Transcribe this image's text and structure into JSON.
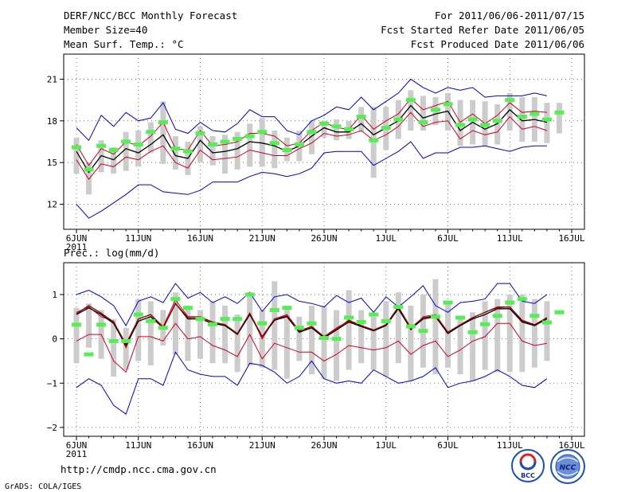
{
  "header": {
    "title": "DERF/NCC/BCC Monthly Forecast",
    "member_size": "Member Size=40",
    "var_label": "Mean Surf. Temp.: °C",
    "period": "For 2011/06/06-2011/07/15",
    "fcst_started": "Fcst Started Refer Date 2011/06/05",
    "fcst_produced": "Fcst Produced Date 2011/06/06"
  },
  "footer": {
    "url": "http://cmdp.ncc.cma.gov.cn",
    "credit": "GrADS: COLA/IGES",
    "logo_bcc": "BCC",
    "logo_ncc": "NCC"
  },
  "colors": {
    "ensemble_max_min": "#0000cc",
    "percentile_band": "#cc0022",
    "ensemble_mean": "#000000",
    "observed_marker": "#55ee55",
    "spread_box": "#cccccc",
    "grid": "#555555"
  },
  "chart_data": [
    {
      "type": "line",
      "title": "Mean Surf. Temp.: °C",
      "x_ticks": [
        "6JUN",
        "11JUN",
        "16JUN",
        "21JUN",
        "26JUN",
        "1JUL",
        "6JUL",
        "11JUL",
        "16JUL"
      ],
      "x_tick_days": [
        0,
        5,
        10,
        15,
        20,
        25,
        30,
        35,
        40
      ],
      "x_year": "2011",
      "y_ticks": [
        "12",
        "15",
        "18",
        "21"
      ],
      "y_tick_values": [
        12,
        15,
        18,
        21
      ],
      "ylim": [
        10.2,
        22.8
      ],
      "days": [
        0,
        1,
        2,
        3,
        4,
        5,
        6,
        7,
        8,
        9,
        10,
        11,
        12,
        13,
        14,
        15,
        16,
        17,
        18,
        19,
        20,
        21,
        22,
        23,
        24,
        25,
        26,
        27,
        28,
        29,
        30,
        31,
        32,
        33,
        34,
        35,
        36,
        37,
        38
      ],
      "series": [
        {
          "name": "ensemble max",
          "color": "#0000cc",
          "values": [
            17.5,
            16.6,
            18.4,
            17.6,
            18.6,
            18.0,
            18.2,
            19.3,
            17.4,
            17.1,
            17.9,
            17.3,
            17.2,
            17.8,
            18.8,
            18.3,
            18.3,
            17.3,
            17.0,
            18.0,
            18.4,
            19.0,
            18.8,
            19.7,
            18.8,
            19.4,
            20.0,
            21.0,
            20.4,
            20.0,
            20.4,
            20.2,
            20.4,
            19.7,
            19.8,
            19.8,
            19.8,
            20.0,
            19.8
          ]
        },
        {
          "name": "ensemble min",
          "color": "#0000cc",
          "values": [
            12.0,
            11.0,
            11.5,
            12.1,
            12.7,
            13.4,
            13.4,
            12.9,
            12.8,
            12.7,
            13.0,
            13.6,
            13.6,
            13.6,
            14.0,
            14.3,
            14.2,
            14.0,
            14.2,
            14.6,
            15.7,
            15.8,
            15.8,
            15.8,
            14.8,
            15.3,
            15.8,
            16.5,
            15.3,
            15.7,
            15.7,
            16.1,
            16.1,
            16.2,
            16.0,
            15.8,
            16.1,
            16.2,
            16.2
          ]
        },
        {
          "name": "upper percentile",
          "color": "#cc0022",
          "values": [
            16.3,
            14.8,
            16.0,
            15.6,
            16.5,
            16.2,
            16.9,
            17.9,
            16.0,
            15.9,
            17.3,
            16.2,
            16.3,
            16.5,
            17.1,
            17.1,
            16.9,
            16.2,
            16.4,
            17.3,
            17.9,
            17.5,
            17.4,
            18.4,
            17.4,
            18.0,
            18.5,
            19.6,
            18.8,
            19.1,
            19.4,
            17.9,
            18.5,
            17.8,
            18.4,
            19.3,
            18.6,
            18.7,
            18.6
          ]
        },
        {
          "name": "lower percentile",
          "color": "#cc0022",
          "values": [
            15.2,
            13.8,
            14.9,
            14.7,
            15.4,
            15.2,
            15.8,
            16.2,
            15.0,
            14.6,
            15.9,
            15.2,
            15.3,
            15.4,
            15.9,
            15.7,
            15.5,
            15.5,
            16.0,
            16.4,
            17.1,
            16.9,
            17.0,
            17.3,
            16.6,
            17.0,
            17.6,
            18.6,
            17.6,
            17.9,
            18.0,
            16.7,
            17.3,
            17.0,
            17.2,
            18.3,
            17.4,
            17.6,
            17.3
          ]
        },
        {
          "name": "ensemble mean",
          "color": "#000000",
          "values": [
            15.8,
            14.3,
            15.5,
            15.2,
            16.0,
            15.7,
            16.3,
            17.0,
            15.5,
            15.3,
            16.6,
            15.7,
            15.8,
            16.0,
            16.5,
            16.4,
            16.2,
            15.8,
            16.2,
            16.9,
            17.5,
            17.2,
            17.2,
            17.8,
            17.0,
            17.5,
            18.0,
            19.1,
            18.2,
            18.5,
            18.7,
            17.3,
            17.9,
            17.4,
            17.8,
            18.8,
            18.0,
            18.1,
            17.9
          ]
        }
      ],
      "observed": [
        16.1,
        14.5,
        16.2,
        15.9,
        16.5,
        16.3,
        17.2,
        17.9,
        16.0,
        15.8,
        17.1,
        16.3,
        16.5,
        16.7,
        16.9,
        17.2,
        16.4,
        15.9,
        16.3,
        17.2,
        17.8,
        17.6,
        17.4,
        18.3,
        16.6,
        17.5,
        18.1,
        19.5,
        17.9,
        18.8,
        19.2,
        17.7,
        18.1,
        17.7,
        18.0,
        19.5,
        18.3,
        18.5,
        18.1,
        18.6
      ],
      "spread_box": {
        "high": [
          16.8,
          15.0,
          16.6,
          16.1,
          17.2,
          17.3,
          17.9,
          19.4,
          16.9,
          16.5,
          17.6,
          16.9,
          17.0,
          17.2,
          17.8,
          18.2,
          17.3,
          16.8,
          17.3,
          18.0,
          18.0,
          18.1,
          18.0,
          19.0,
          19.0,
          19.0,
          19.5,
          20.2,
          19.8,
          19.7,
          20.0,
          19.5,
          19.5,
          19.4,
          19.2,
          20.0,
          19.7,
          19.7,
          19.3,
          19.3
        ],
        "low": [
          14.2,
          12.7,
          14.3,
          14.2,
          14.4,
          14.7,
          15.7,
          14.9,
          14.5,
          14.1,
          15.0,
          14.8,
          14.2,
          14.5,
          14.7,
          14.7,
          14.6,
          15.1,
          15.1,
          15.6,
          16.8,
          16.6,
          16.7,
          17.2,
          13.9,
          15.9,
          16.7,
          17.3,
          17.3,
          17.7,
          17.3,
          16.2,
          16.3,
          16.2,
          16.3,
          17.3,
          16.5,
          16.5,
          16.4,
          17.1
        ]
      }
    },
    {
      "type": "line",
      "title": "Prec.: log(mm/d)",
      "x_ticks": [
        "6JUN",
        "11JUN",
        "16JUN",
        "21JUN",
        "26JUN",
        "1JUL",
        "6JUL",
        "11JUL",
        "16JUL"
      ],
      "x_tick_days": [
        0,
        5,
        10,
        15,
        20,
        25,
        30,
        35,
        40
      ],
      "x_year": "2011",
      "y_ticks": [
        "−2",
        "−1",
        "0",
        "1"
      ],
      "y_tick_values": [
        -2,
        -1,
        0,
        1
      ],
      "ylim": [
        -2.2,
        1.72
      ],
      "days": [
        0,
        1,
        2,
        3,
        4,
        5,
        6,
        7,
        8,
        9,
        10,
        11,
        12,
        13,
        14,
        15,
        16,
        17,
        18,
        19,
        20,
        21,
        22,
        23,
        24,
        25,
        26,
        27,
        28,
        29,
        30,
        31,
        32,
        33,
        34,
        35,
        36,
        37,
        38
      ],
      "series": [
        {
          "name": "ensemble max",
          "color": "#0000cc",
          "values": [
            1.0,
            1.1,
            0.95,
            0.75,
            0.3,
            0.85,
            0.95,
            0.82,
            1.25,
            0.92,
            1.05,
            0.82,
            0.95,
            0.8,
            1.05,
            0.62,
            0.95,
            1.0,
            0.85,
            0.8,
            0.72,
            0.98,
            0.82,
            0.92,
            0.6,
            0.95,
            0.72,
            0.95,
            1.2,
            0.75,
            0.6,
            0.82,
            0.85,
            0.9,
            1.25,
            1.25,
            0.85,
            0.8,
            1.0
          ]
        },
        {
          "name": "ensemble min",
          "color": "#0000cc",
          "values": [
            -1.1,
            -0.9,
            -1.05,
            -1.5,
            -1.7,
            -0.9,
            -0.9,
            -1.05,
            -0.3,
            -0.7,
            -0.8,
            -0.85,
            -0.85,
            -1.05,
            -0.55,
            -0.6,
            -0.75,
            -1.0,
            -0.85,
            -0.5,
            -0.9,
            -1.0,
            -0.95,
            -1.0,
            -0.7,
            -0.85,
            -1.0,
            -0.95,
            -0.85,
            -0.65,
            -1.1,
            -1.0,
            -0.95,
            -0.85,
            -0.7,
            -0.85,
            -1.05,
            -1.1,
            -0.9
          ]
        },
        {
          "name": "upper percentile",
          "color": "#cc0022",
          "values": [
            0.6,
            0.72,
            0.5,
            0.4,
            -0.2,
            0.45,
            0.55,
            0.28,
            0.88,
            0.5,
            0.5,
            0.38,
            0.32,
            0.12,
            0.58,
            0.0,
            0.45,
            0.55,
            0.18,
            0.25,
            0.05,
            0.25,
            0.4,
            0.3,
            0.2,
            0.3,
            0.72,
            0.2,
            0.5,
            0.55,
            0.15,
            0.32,
            0.48,
            0.6,
            0.7,
            0.72,
            0.4,
            0.32,
            0.48
          ]
        },
        {
          "name": "lower percentile",
          "color": "#cc0022",
          "values": [
            -0.05,
            0.1,
            0.1,
            -0.5,
            -0.75,
            0.05,
            0.05,
            -0.05,
            0.35,
            0.0,
            0.05,
            -0.15,
            -0.25,
            -0.4,
            0.1,
            -0.45,
            -0.1,
            -0.2,
            -0.3,
            -0.3,
            -0.5,
            -0.35,
            -0.15,
            -0.2,
            -0.25,
            -0.2,
            -0.05,
            -0.35,
            -0.15,
            -0.05,
            -0.4,
            -0.25,
            -0.05,
            0.05,
            0.35,
            0.35,
            -0.05,
            -0.15,
            -0.1
          ]
        },
        {
          "name": "ensemble mean",
          "color": "#000000",
          "values": [
            0.55,
            0.7,
            0.55,
            0.35,
            -0.15,
            0.4,
            0.5,
            0.25,
            0.8,
            0.45,
            0.45,
            0.35,
            0.3,
            0.1,
            0.55,
            0.05,
            0.42,
            0.5,
            0.15,
            0.25,
            0.02,
            0.2,
            0.38,
            0.28,
            0.18,
            0.3,
            0.68,
            0.22,
            0.45,
            0.5,
            0.12,
            0.3,
            0.45,
            0.55,
            0.68,
            0.68,
            0.38,
            0.3,
            0.45
          ]
        },
        {
          "name": "ensemble mean (dark red)",
          "color": "#8b0000",
          "values": [
            0.57,
            0.75,
            0.58,
            0.38,
            -0.12,
            0.45,
            0.55,
            0.25,
            0.8,
            0.48,
            0.48,
            0.38,
            0.32,
            0.12,
            0.58,
            0.05,
            0.45,
            0.52,
            0.18,
            0.28,
            0.05,
            0.22,
            0.42,
            0.3,
            0.2,
            0.32,
            0.72,
            0.25,
            0.48,
            0.52,
            0.15,
            0.32,
            0.48,
            0.6,
            0.72,
            0.72,
            0.42,
            0.32,
            0.48
          ]
        }
      ],
      "observed": [
        0.32,
        -0.35,
        0.32,
        -0.05,
        -0.05,
        0.55,
        0.4,
        0.25,
        0.9,
        0.7,
        0.45,
        0.33,
        0.45,
        0.45,
        1.0,
        0.35,
        0.65,
        0.7,
        0.25,
        0.35,
        0.02,
        0.0,
        0.48,
        0.38,
        0.55,
        0.4,
        0.72,
        0.28,
        0.18,
        0.5,
        0.82,
        0.48,
        0.15,
        0.33,
        0.52,
        0.82,
        0.9,
        0.52,
        0.37,
        0.6
      ],
      "spread_box": {
        "high": [
          0.7,
          0.8,
          0.65,
          0.45,
          0.25,
          0.9,
          0.85,
          0.65,
          1.05,
          0.75,
          0.65,
          0.85,
          0.75,
          0.55,
          1.05,
          0.65,
          1.3,
          0.75,
          0.5,
          0.75,
          0.75,
          0.65,
          1.1,
          0.65,
          0.5,
          0.85,
          1.05,
          0.75,
          1.0,
          1.35,
          0.85,
          0.5,
          0.6,
          0.85,
          0.9,
          1.0,
          1.0,
          0.9,
          0.85
        ],
        "low": [
          -0.55,
          -0.2,
          -0.45,
          -0.85,
          -0.7,
          -0.5,
          -0.6,
          -0.15,
          -0.35,
          -0.5,
          -0.45,
          -0.55,
          -0.55,
          -0.75,
          -0.6,
          -0.65,
          -0.7,
          -0.9,
          -0.5,
          -0.8,
          -0.9,
          -0.95,
          -0.7,
          -0.55,
          -0.7,
          -0.85,
          -0.55,
          -0.95,
          -0.65,
          -0.8,
          -0.65,
          -0.8,
          -0.95,
          -0.7,
          -0.75,
          -0.75,
          -0.75,
          -0.65,
          -0.5
        ]
      }
    }
  ]
}
